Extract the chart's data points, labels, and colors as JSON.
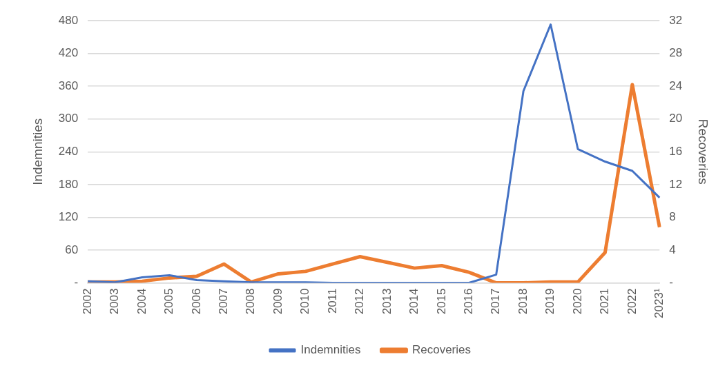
{
  "chart_data": {
    "type": "line",
    "ylabel": "Indemnities",
    "y2label": "Recoveries",
    "categories": [
      "2002",
      "2003",
      "2004",
      "2005",
      "2006",
      "2007",
      "2008",
      "2009",
      "2010",
      "2011",
      "2012",
      "2013",
      "2014",
      "2015",
      "2016",
      "2017",
      "2018",
      "2019",
      "2020",
      "2021",
      "2022",
      "2023¹"
    ],
    "series": [
      {
        "name": "Indemnities",
        "color": "#4472c4",
        "values": [
          3,
          1,
          10,
          14,
          5,
          3,
          1,
          1,
          1,
          0,
          0,
          0,
          0,
          0,
          0,
          15,
          351,
          473,
          245,
          222,
          205,
          156
        ]
      },
      {
        "name": "Recoveries",
        "color": "#ed7d31",
        "axis": "y2",
        "values": [
          0.1,
          0.1,
          0.2,
          0.6,
          0.8,
          2.3,
          0.1,
          1.1,
          1.4,
          2.3,
          3.2,
          2.5,
          1.8,
          2.1,
          1.3,
          0,
          0,
          0.1,
          0.1,
          3.7,
          24.2,
          6.8
        ]
      }
    ],
    "ylim": [
      0,
      480
    ],
    "yticks": [
      {
        "value": 0,
        "label": "-"
      },
      60,
      120,
      180,
      240,
      300,
      360,
      420,
      480
    ],
    "y2lim": [
      0,
      32
    ],
    "y2ticks": [
      {
        "value": 0,
        "label": "-"
      },
      4,
      8,
      12,
      16,
      20,
      24,
      28,
      32
    ],
    "grid": "y",
    "legend": "bottom",
    "marker": "none",
    "line_style": "solid"
  }
}
